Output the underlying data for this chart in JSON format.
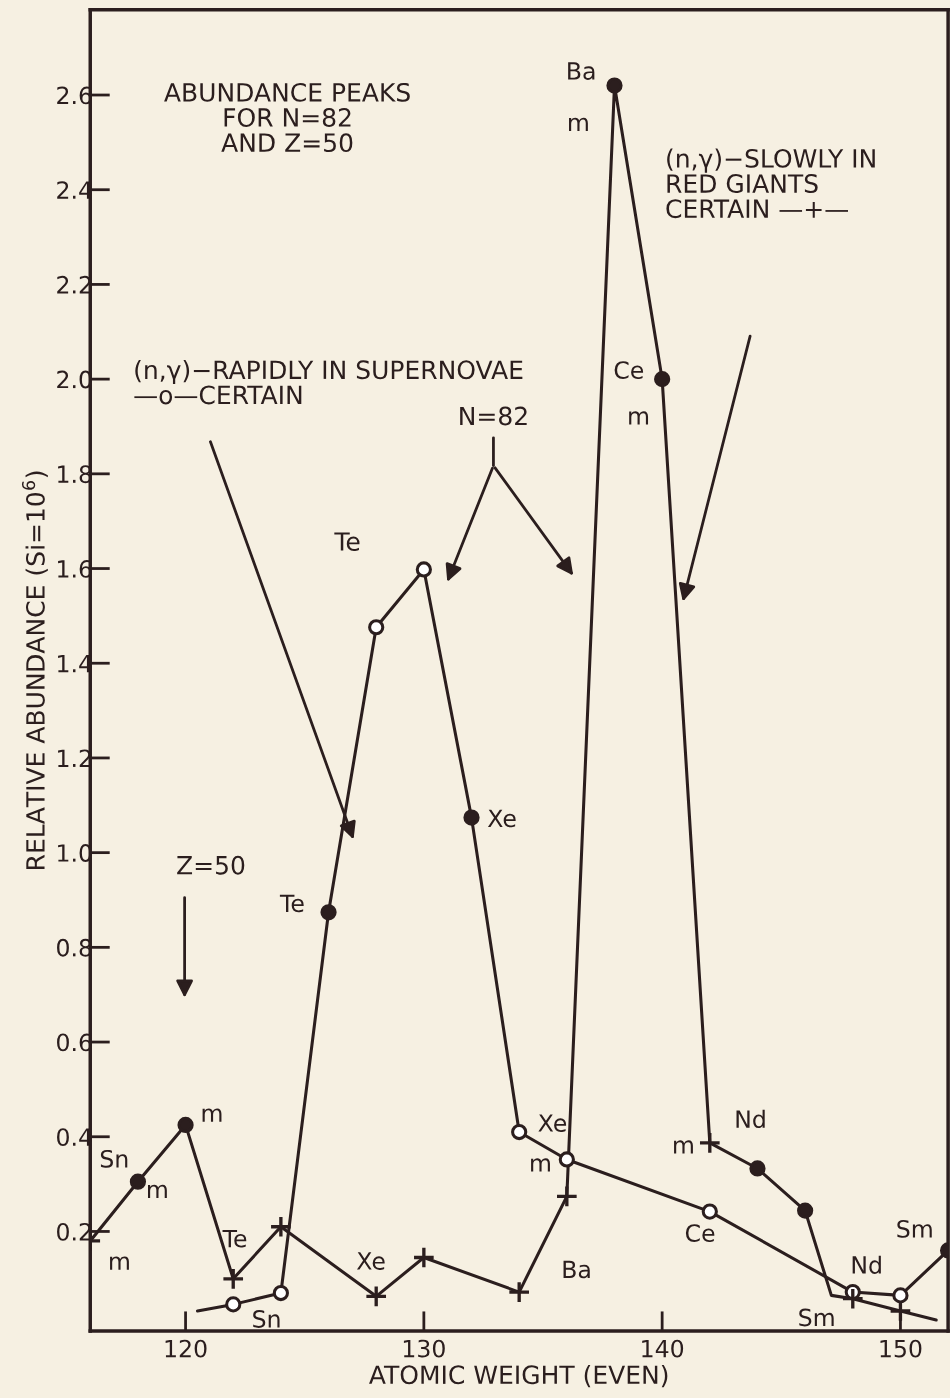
{
  "chart_data": {
    "type": "line",
    "xlabel": "ATOMIC WEIGHT (EVEN)",
    "ylabel": "RELATIVE ABUNDANCE (Si=10$^{6}$)",
    "xlim": [
      116,
      152
    ],
    "ylim": [
      -0.01,
      2.78
    ],
    "xticks": [
      120,
      130,
      140,
      150
    ],
    "yticks": [
      0.2,
      0.4,
      0.6,
      0.8,
      {
        "value": 1,
        "label": "1.0"
      },
      1.2,
      1.4,
      1.6,
      1.8,
      {
        "value": 2,
        "label": "2.0"
      },
      2.2,
      2.4,
      2.6
    ],
    "grid": false,
    "legend": false,
    "marker": "none",
    "line_style": "solid",
    "series": [
      {
        "color": "#2b1e1e",
        "x": [
          116,
          118,
          120,
          122,
          124,
          128,
          130,
          134,
          136,
          138,
          140,
          142,
          144,
          146,
          147.1,
          148,
          150,
          151.5
        ],
        "values": [
          0.18,
          0.305,
          0.425,
          0.1,
          0.21,
          0.063,
          0.145,
          0.072,
          0.274,
          2.62,
          2.0,
          0.387,
          0.333,
          0.244,
          0.065,
          0.058,
          0.032,
          0.013
        ]
      },
      {
        "color": "#2b1e1e",
        "x": [
          120.5,
          122,
          124,
          126,
          128,
          130,
          132,
          134,
          136,
          142,
          148,
          150,
          152
        ],
        "values": [
          0.032,
          0.046,
          0.07,
          0.874,
          1.476,
          1.598,
          1.074,
          0.41,
          0.352,
          0.242,
          0.072,
          0.065,
          0.16
        ]
      },
      {
        "type": "scatter",
        "marker": "circle",
        "color": "#2b1e1e",
        "x": [
          118,
          120,
          138,
          140,
          144,
          146,
          126,
          132,
          152
        ],
        "values": [
          0.305,
          0.425,
          2.62,
          2.0,
          0.333,
          0.244,
          0.874,
          1.074,
          0.16
        ]
      },
      {
        "type": "scatter",
        "marker": "circle",
        "color": "#ffffff",
        "x": [
          122,
          124,
          128,
          130,
          134,
          136,
          142,
          148,
          150
        ],
        "values": [
          0.046,
          0.07,
          1.476,
          1.598,
          0.41,
          0.352,
          0.242,
          0.072,
          0.065
        ]
      },
      {
        "type": "scatter",
        "marker": "cross",
        "color": "#2b1e1e",
        "x": [
          116,
          122,
          124,
          128,
          130,
          134,
          136,
          142,
          148,
          150
        ],
        "values": [
          0.18,
          0.1,
          0.21,
          0.063,
          0.145,
          0.072,
          0.274,
          0.387,
          0.058,
          0.032
        ]
      }
    ],
    "annotations": [
      "ABUNDANCE PEAKS\nFOR N=82\nAND Z=50",
      "(n,γ)−RAPIDLY IN SUPERNOVAE\n—o—CERTAIN",
      "N=82",
      "(n,γ)−SLOWLY IN\nRED GIANTS\nCERTAIN —+—",
      "Z=50",
      {
        "text": "Sn",
        "x": 118,
        "y": 0.305
      },
      {
        "text": "m",
        "x": 118,
        "y": 0.305
      },
      {
        "text": "m",
        "x": 120,
        "y": 0.425
      },
      {
        "text": "m",
        "x": 116,
        "y": 0.18
      },
      {
        "text": "Te",
        "x": 124,
        "y": 0.21
      },
      {
        "text": "Sn",
        "x": 122,
        "y": 0.046
      },
      {
        "text": "Xe",
        "x": 130,
        "y": 0.145
      },
      {
        "text": "Te",
        "x": 126,
        "y": 0.874
      },
      "Te",
      {
        "text": "Xe",
        "x": 132,
        "y": 1.074
      },
      {
        "text": "Xe",
        "x": 134,
        "y": 0.41
      },
      {
        "text": "m",
        "x": 136,
        "y": 0.352
      },
      {
        "text": "Ba",
        "x": 136,
        "y": 0.274
      },
      {
        "text": "Ba",
        "x": 138,
        "y": 2.62
      },
      {
        "text": "m",
        "x": 138,
        "y": 2.62
      },
      {
        "text": "Ce",
        "x": 140,
        "y": 2.0
      },
      {
        "text": "m",
        "x": 140,
        "y": 2.0
      },
      {
        "text": "m",
        "x": 142,
        "y": 0.387
      },
      {
        "text": "Nd",
        "x": 144,
        "y": 0.333
      },
      {
        "text": "Ce",
        "x": 142,
        "y": 0.242
      },
      {
        "text": "Nd",
        "x": 148,
        "y": 0.072
      },
      {
        "text": "Sm",
        "x": 148,
        "y": 0.058
      },
      {
        "text": "Sm",
        "x": 152,
        "y": 0.16
      }
    ]
  }
}
